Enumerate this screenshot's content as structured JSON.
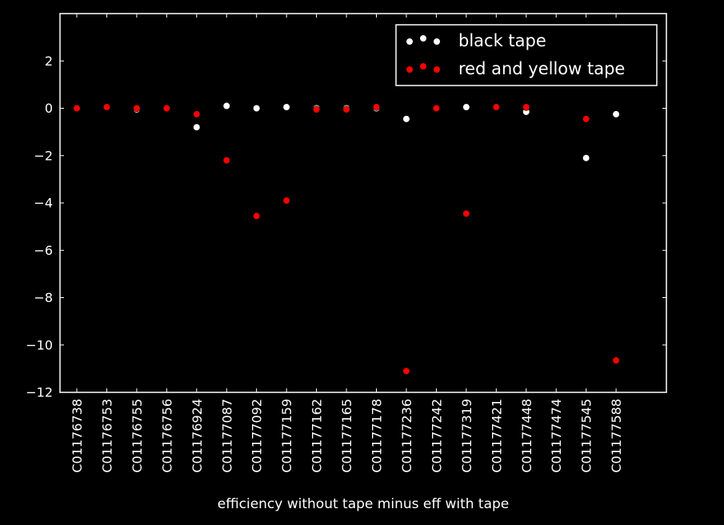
{
  "chart_data": {
    "type": "scatter",
    "title": "",
    "xlabel": "efficiency without tape minus eff with tape",
    "ylabel": "",
    "categories": [
      "C01176738",
      "C01176753",
      "C01176755",
      "C01176756",
      "C01176924",
      "C01177087",
      "C01177092",
      "C01177159",
      "C01177162",
      "C01177165",
      "C01177178",
      "C01177236",
      "C01177242",
      "C01177319",
      "C01177421",
      "C01177448",
      "C01177474",
      "C01177545",
      "C01177588"
    ],
    "ylim": [
      -12,
      4
    ],
    "yticks": [
      2,
      0,
      -2,
      -4,
      -6,
      -8,
      -10,
      -12
    ],
    "ytick_labels": [
      "2",
      "0",
      "−2",
      "−4",
      "−6",
      "−8",
      "−10",
      "−12"
    ],
    "grid": false,
    "legend_position": "top-right",
    "series": [
      {
        "name": "black tape",
        "color": "#ffffff",
        "values": [
          0.0,
          0.05,
          -0.05,
          0.0,
          -0.8,
          0.1,
          0.0,
          0.05,
          0.0,
          0.0,
          0.0,
          -0.45,
          0.0,
          0.05,
          0.05,
          -0.15,
          null,
          -2.1,
          -0.25
        ]
      },
      {
        "name": "red and yellow tape",
        "color": "#ff0000",
        "values": [
          0.0,
          0.05,
          0.0,
          0.0,
          -0.25,
          -2.2,
          -4.55,
          -3.9,
          -0.05,
          -0.05,
          0.05,
          -11.1,
          0.0,
          -4.45,
          0.05,
          0.05,
          null,
          -0.45,
          -10.65
        ]
      }
    ]
  }
}
